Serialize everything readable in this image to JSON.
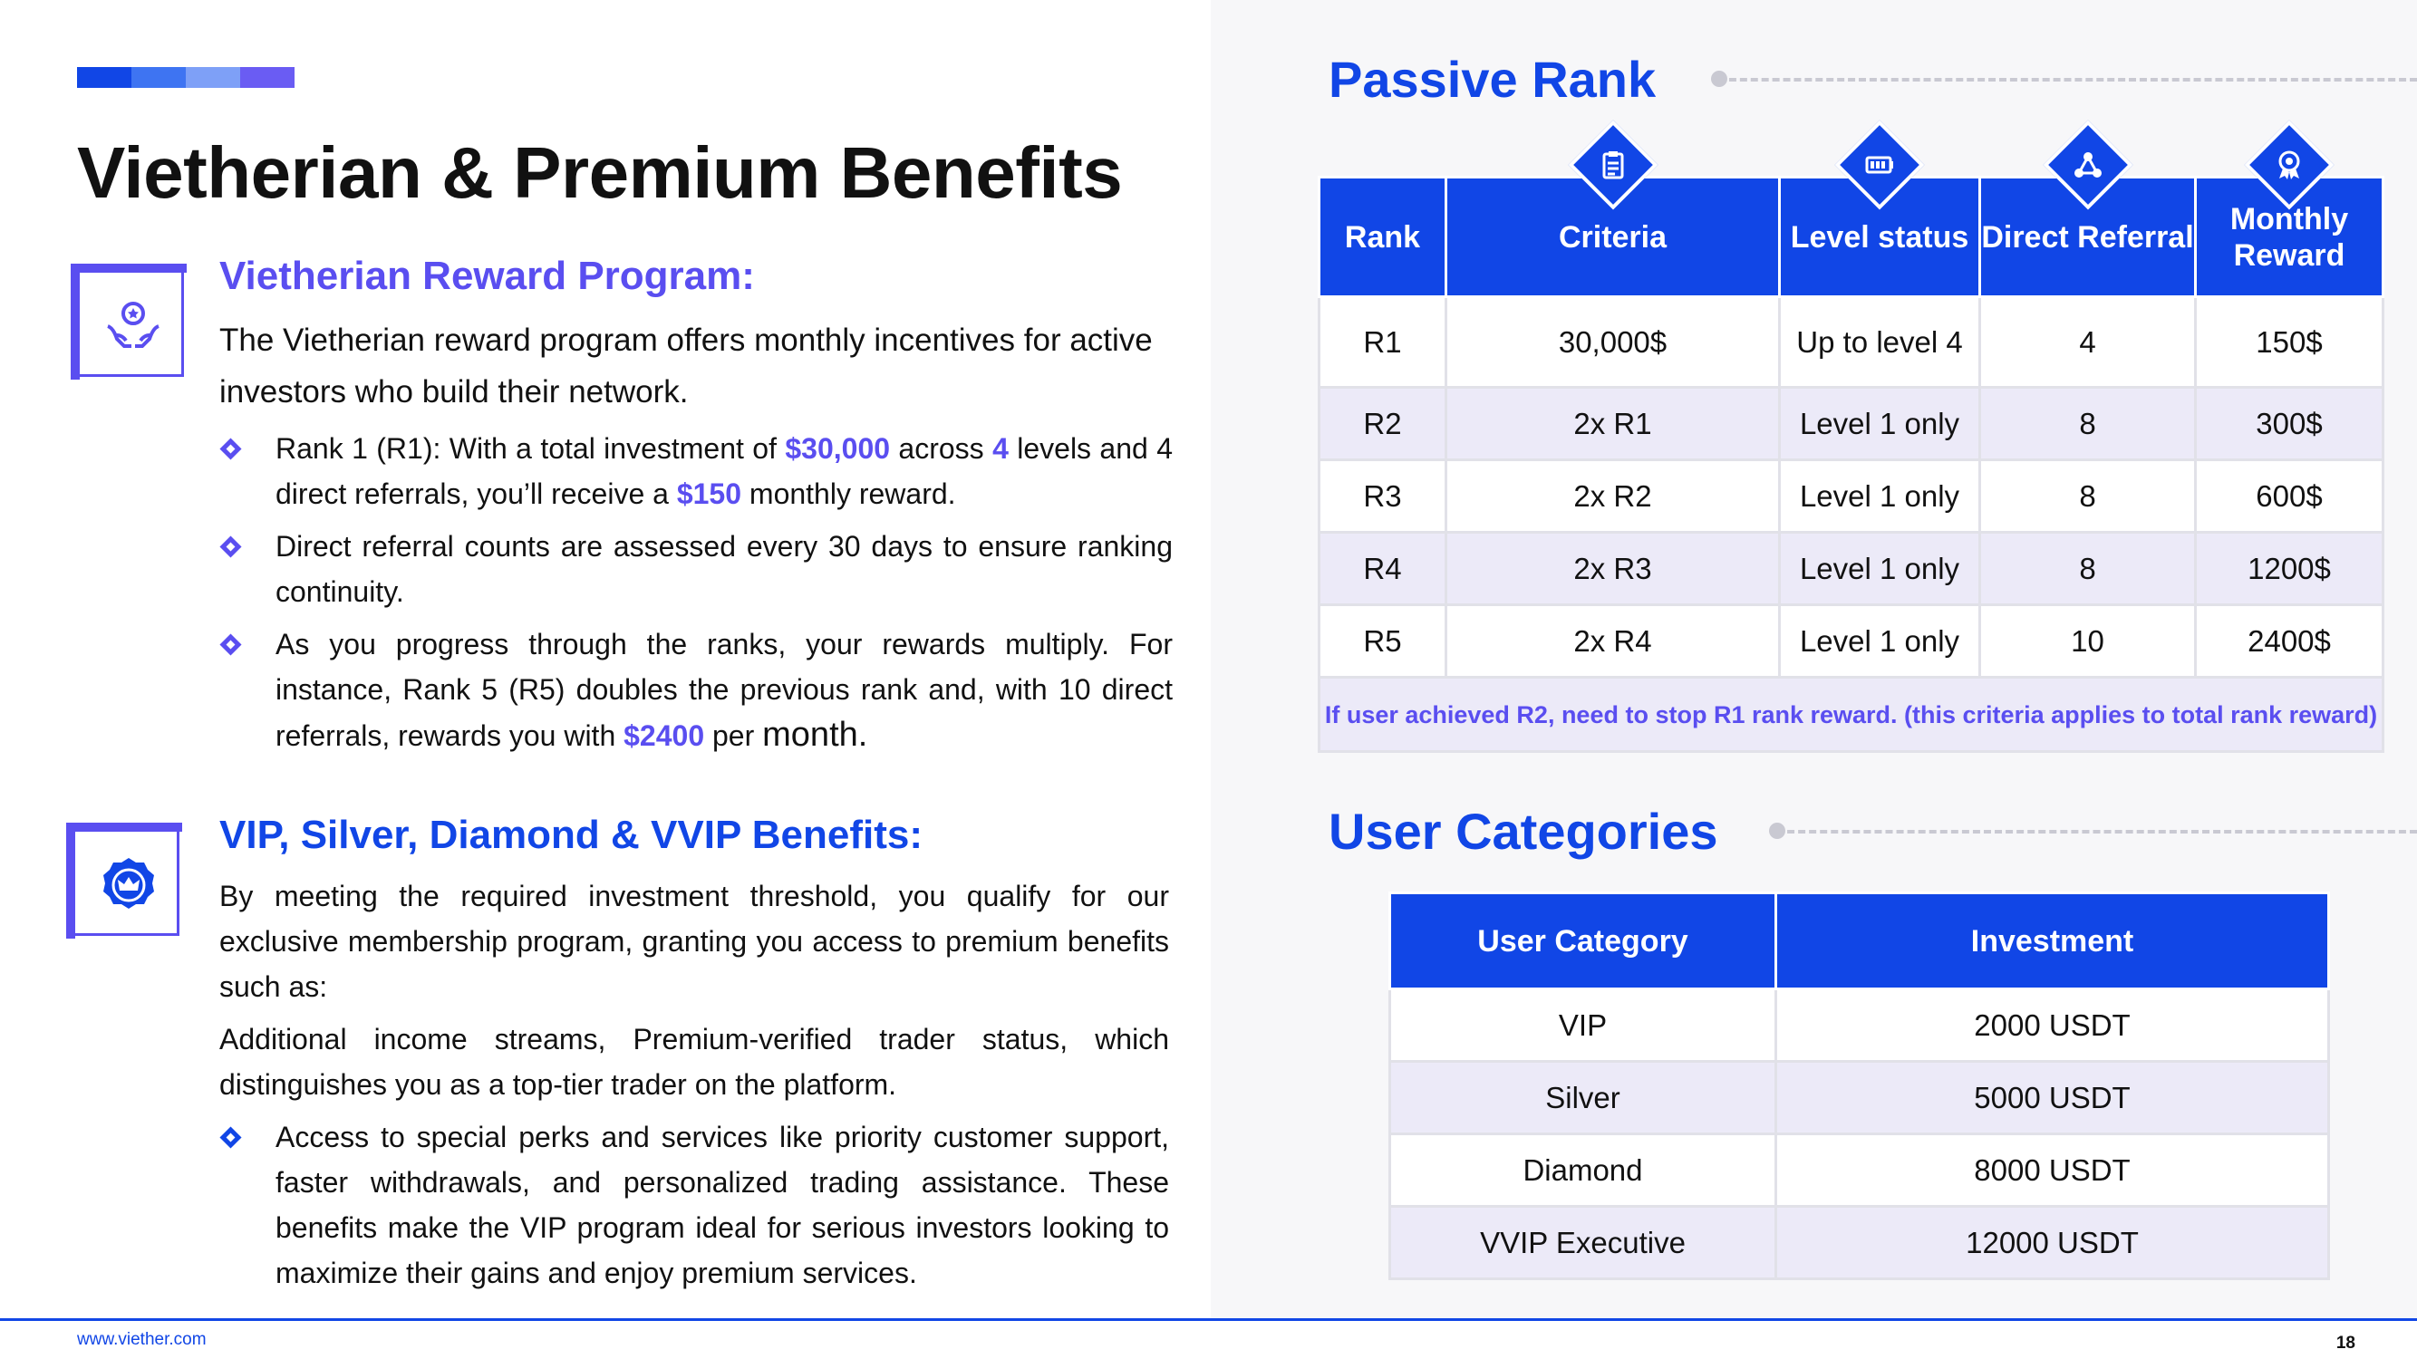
{
  "colors": {
    "accent": "#1146e6",
    "purple": "#5a4ef0",
    "light_row": "#eceaf8"
  },
  "accent_bar_colors": [
    "#1146e6",
    "#3e74f2",
    "#7ea0f7",
    "#6a5cf3"
  ],
  "title": "Vietherian & Premium Benefits",
  "reward": {
    "icon": "hands-award-icon",
    "heading": "Vietherian Reward Program:",
    "intro": "The Vietherian reward program offers monthly incentives for active investors who build their network.",
    "b1": {
      "p1": "Rank 1 (R1): With a total investment of ",
      "h1": "$30,000",
      "p2": " across ",
      "h2": "4",
      "p3": " levels and 4 direct referrals, you’ll receive a ",
      "h3": "$150",
      "p4": " monthly reward."
    },
    "b2": "Direct referral counts are assessed every 30 days to ensure ranking continuity.",
    "b3": {
      "p1": "As you progress through the ranks, your rewards multiply. For instance, Rank 5 (R5) doubles the previous rank and, with 10 direct referrals, rewards you with ",
      "h1": "$2400",
      "p2": " per ",
      "p3": "month."
    }
  },
  "vip": {
    "icon": "crown-badge-icon",
    "heading": "VIP, Silver, Diamond & VVIP Benefits:",
    "p1": "By meeting the required investment threshold, you qualify for our exclusive membership program, granting you access to premium benefits such as:",
    "p2": "Additional income streams, Premium-verified trader status, which distinguishes you as a top-tier trader on the platform.",
    "b1": "Access to special perks and services like priority customer support, faster withdrawals, and personalized trading assistance. These benefits make the VIP program ideal for serious investors looking to maximize their gains and enjoy premium services."
  },
  "passive": {
    "heading": "Passive Rank",
    "headers": [
      "Rank",
      "Criteria",
      "Level status",
      "Direct Referral",
      "Monthly Reward"
    ],
    "header_icons": [
      "clipboard-icon",
      "battery-icon",
      "network-icon",
      "medal-icon"
    ],
    "rows": [
      [
        "R1",
        "30,000$",
        "Up to level 4",
        "4",
        "150$"
      ],
      [
        "R2",
        "2x R1",
        "Level 1 only",
        "8",
        "300$"
      ],
      [
        "R3",
        "2x R2",
        "Level 1 only",
        "8",
        "600$"
      ],
      [
        "R4",
        "2x R3",
        "Level 1 only",
        "8",
        "1200$"
      ],
      [
        "R5",
        "2x R4",
        "Level 1 only",
        "10",
        "2400$"
      ]
    ],
    "note": "If user achieved R2, need to stop R1 rank reward. (this criteria applies to total rank reward)"
  },
  "categories": {
    "heading": "User Categories",
    "headers": [
      "User Category",
      "Investment"
    ],
    "rows": [
      [
        "VIP",
        "2000 USDT"
      ],
      [
        "Silver",
        "5000 USDT"
      ],
      [
        "Diamond",
        "8000 USDT"
      ],
      [
        "VVIP Executive",
        "12000 USDT"
      ]
    ]
  },
  "footer": {
    "url": "www.viether.com",
    "page": "18"
  }
}
